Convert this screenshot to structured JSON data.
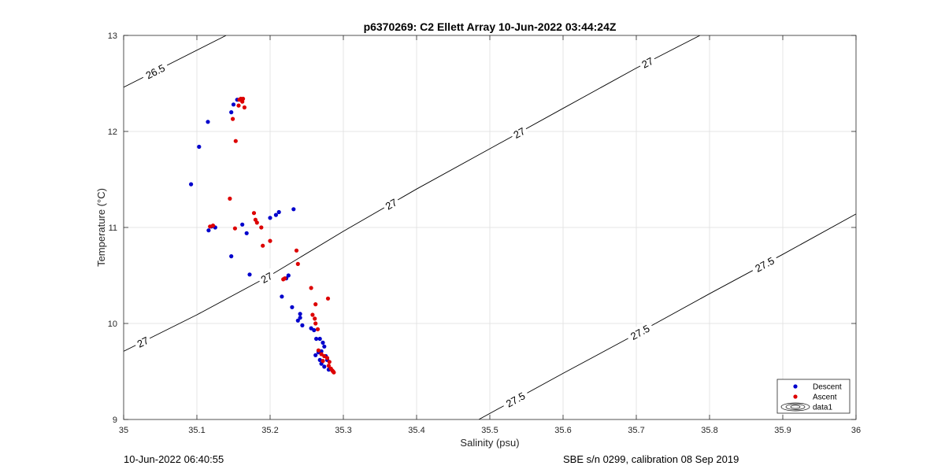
{
  "footer": {
    "timestamp": "10-Jun-2022 06:40:55",
    "calibration": "SBE s/n 0299, calibration 08 Sep 2019"
  },
  "chart_data": {
    "type": "scatter",
    "title": "p6370269: C2 Ellett Array 10-Jun-2022 03:44:24Z",
    "xlabel": "Salinity (psu)",
    "ylabel": "Temperature (°C)",
    "xlim": [
      35,
      36
    ],
    "ylim": [
      9,
      13
    ],
    "xticks": [
      "35",
      "35.1",
      "35.2",
      "35.3",
      "35.4",
      "35.5",
      "35.6",
      "35.7",
      "35.8",
      "35.9",
      "36"
    ],
    "yticks": [
      "9",
      "10",
      "11",
      "12",
      "13"
    ],
    "grid": true,
    "legend_position": "bottom-right",
    "legend": [
      "Descent",
      "Ascent",
      "data1"
    ],
    "colors": {
      "descent": "#0000cc",
      "ascent": "#dd0000",
      "contour": "#000000",
      "grid": "#e4e4e4"
    },
    "contours": [
      {
        "label": "26.5",
        "points": [
          [
            35.0,
            12.46
          ],
          [
            35.14,
            13.0
          ]
        ],
        "label_positions": [
          [
            35.043,
            12.62
          ]
        ]
      },
      {
        "label": "27",
        "points": [
          [
            35.0,
            9.71
          ],
          [
            35.1,
            10.09
          ],
          [
            35.2,
            10.5
          ],
          [
            35.3,
            10.96
          ],
          [
            35.4,
            11.4
          ],
          [
            35.5,
            11.82
          ],
          [
            35.6,
            12.24
          ],
          [
            35.7,
            12.66
          ],
          [
            35.787,
            13.0
          ]
        ],
        "label_positions": [
          [
            35.026,
            9.81
          ],
          [
            35.195,
            10.47
          ],
          [
            35.365,
            11.24
          ],
          [
            35.54,
            12.0
          ],
          [
            35.715,
            12.71
          ]
        ]
      },
      {
        "label": "27.5",
        "points": [
          [
            35.485,
            9.0
          ],
          [
            35.6,
            9.48
          ],
          [
            35.7,
            9.89
          ],
          [
            35.8,
            10.31
          ],
          [
            35.9,
            10.72
          ],
          [
            36.0,
            11.14
          ]
        ],
        "label_positions": [
          [
            35.535,
            9.21
          ],
          [
            35.705,
            9.97
          ],
          [
            35.875,
            10.72
          ]
        ]
      }
    ],
    "series": [
      {
        "name": "Descent",
        "color": "#0000cc",
        "points": [
          [
            35.092,
            11.45
          ],
          [
            35.103,
            11.84
          ],
          [
            35.115,
            12.1
          ],
          [
            35.147,
            12.2
          ],
          [
            35.15,
            12.28
          ],
          [
            35.155,
            12.33
          ],
          [
            35.116,
            10.97
          ],
          [
            35.12,
            11.01
          ],
          [
            35.125,
            11.0
          ],
          [
            35.147,
            10.7
          ],
          [
            35.162,
            11.03
          ],
          [
            35.168,
            10.94
          ],
          [
            35.172,
            10.51
          ],
          [
            35.2,
            11.1
          ],
          [
            35.208,
            11.13
          ],
          [
            35.212,
            11.16
          ],
          [
            35.232,
            11.19
          ],
          [
            35.225,
            10.5
          ],
          [
            35.222,
            10.47
          ],
          [
            35.216,
            10.28
          ],
          [
            35.23,
            10.17
          ],
          [
            35.238,
            10.03
          ],
          [
            35.241,
            10.1
          ],
          [
            35.241,
            10.06
          ],
          [
            35.244,
            9.98
          ],
          [
            35.256,
            9.95
          ],
          [
            35.26,
            9.93
          ],
          [
            35.263,
            9.84
          ],
          [
            35.268,
            9.84
          ],
          [
            35.272,
            9.8
          ],
          [
            35.274,
            9.76
          ],
          [
            35.27,
            9.71
          ],
          [
            35.266,
            9.7
          ],
          [
            35.262,
            9.67
          ],
          [
            35.268,
            9.62
          ],
          [
            35.27,
            9.58
          ],
          [
            35.274,
            9.55
          ],
          [
            35.278,
            9.62
          ],
          [
            35.276,
            9.66
          ],
          [
            35.28,
            9.52
          ]
        ]
      },
      {
        "name": "Ascent",
        "color": "#dd0000",
        "points": [
          [
            35.158,
            12.33
          ],
          [
            35.16,
            12.34
          ],
          [
            35.163,
            12.34
          ],
          [
            35.162,
            12.31
          ],
          [
            35.157,
            12.27
          ],
          [
            35.165,
            12.25
          ],
          [
            35.149,
            12.13
          ],
          [
            35.153,
            11.9
          ],
          [
            35.145,
            11.3
          ],
          [
            35.118,
            11.01
          ],
          [
            35.122,
            11.02
          ],
          [
            35.152,
            10.99
          ],
          [
            35.178,
            11.15
          ],
          [
            35.18,
            11.08
          ],
          [
            35.182,
            11.05
          ],
          [
            35.188,
            11.0
          ],
          [
            35.2,
            10.86
          ],
          [
            35.19,
            10.81
          ],
          [
            35.218,
            10.46
          ],
          [
            35.22,
            10.47
          ],
          [
            35.236,
            10.76
          ],
          [
            35.238,
            10.62
          ],
          [
            35.256,
            10.37
          ],
          [
            35.262,
            10.2
          ],
          [
            35.258,
            10.09
          ],
          [
            35.261,
            10.05
          ],
          [
            35.262,
            10.0
          ],
          [
            35.265,
            9.94
          ],
          [
            35.279,
            10.26
          ],
          [
            35.266,
            9.72
          ],
          [
            35.27,
            9.68
          ],
          [
            35.274,
            9.66
          ],
          [
            35.272,
            9.61
          ],
          [
            35.278,
            9.64
          ],
          [
            35.281,
            9.6
          ],
          [
            35.28,
            9.56
          ],
          [
            35.283,
            9.53
          ],
          [
            35.285,
            9.51
          ],
          [
            35.286,
            9.5
          ],
          [
            35.287,
            9.49
          ]
        ]
      }
    ]
  }
}
